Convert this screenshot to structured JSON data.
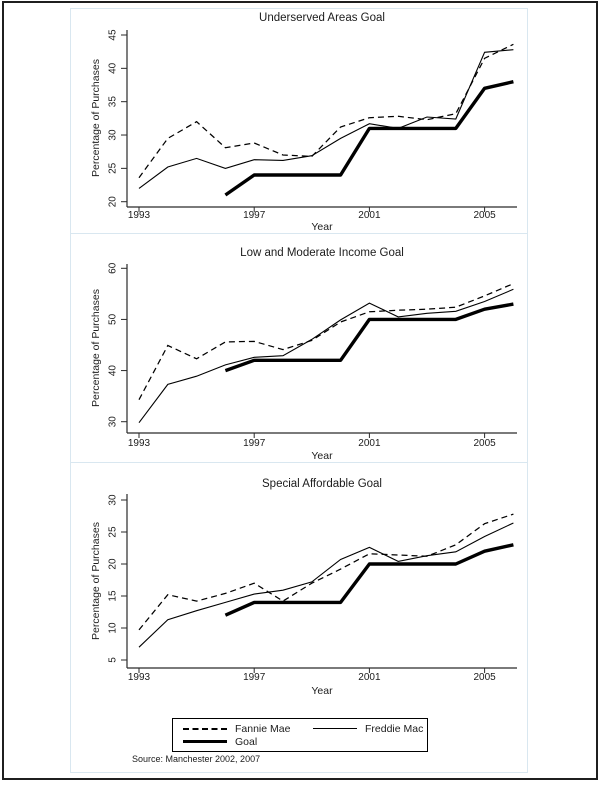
{
  "page": {
    "source_note": "Source: Manchester 2002, 2007"
  },
  "legend": {
    "position": "bottom",
    "items": [
      {
        "label": "Fannie Mae",
        "style": "dashed"
      },
      {
        "label": "Freddie Mac",
        "style": "solid"
      },
      {
        "label": "Goal",
        "style": "thick"
      }
    ]
  },
  "colors": {
    "line": "#000000",
    "axis": "#2a2a2a",
    "figure_border": "#d9e7f0",
    "page_border": "#1f1f1f",
    "background": "#ffffff"
  },
  "chart_data": [
    {
      "type": "line",
      "title": "Underserved Areas Goal",
      "xlabel": "Year",
      "ylabel": "Percentage of Purchases",
      "xlim": [
        1993,
        2006
      ],
      "ylim": [
        20,
        45
      ],
      "x_ticks": [
        1993,
        1997,
        2001,
        2005
      ],
      "y_ticks": [
        20,
        25,
        30,
        35,
        40,
        45
      ],
      "grid": false,
      "series": [
        {
          "name": "Fannie Mae",
          "style": "dashed",
          "x": [
            1993,
            1994,
            1995,
            1996,
            1997,
            1998,
            1999,
            2000,
            2001,
            2002,
            2003,
            2004,
            2005,
            2006
          ],
          "values": [
            23.6,
            29.5,
            32.0,
            28.1,
            28.8,
            27.0,
            26.8,
            31.2,
            32.6,
            32.8,
            32.3,
            33.2,
            41.5,
            43.6
          ]
        },
        {
          "name": "Freddie Mac",
          "style": "solid",
          "x": [
            1993,
            1994,
            1995,
            1996,
            1997,
            1998,
            1999,
            2000,
            2001,
            2002,
            2003,
            2004,
            2005,
            2006
          ],
          "values": [
            22.0,
            25.2,
            26.5,
            25.0,
            26.3,
            26.2,
            26.9,
            29.5,
            31.7,
            31.0,
            32.7,
            32.4,
            42.4,
            42.8
          ]
        },
        {
          "name": "Goal",
          "style": "thick",
          "x": [
            1996,
            1997,
            1998,
            1999,
            2000,
            2001,
            2002,
            2003,
            2004,
            2005,
            2006
          ],
          "values": [
            21,
            24,
            24,
            24,
            24,
            31,
            31,
            31,
            31,
            37,
            38
          ]
        }
      ]
    },
    {
      "type": "line",
      "title": "Low and Moderate Income Goal",
      "xlabel": "Year",
      "ylabel": "Percentage of Purchases",
      "xlim": [
        1993,
        2006
      ],
      "ylim": [
        30,
        60
      ],
      "x_ticks": [
        1993,
        1997,
        2001,
        2005
      ],
      "y_ticks": [
        30,
        40,
        50,
        60
      ],
      "grid": false,
      "series": [
        {
          "name": "Fannie Mae",
          "style": "dashed",
          "x": [
            1993,
            1994,
            1995,
            1996,
            1997,
            1998,
            1999,
            2000,
            2001,
            2002,
            2003,
            2004,
            2005,
            2006
          ],
          "values": [
            34.3,
            44.9,
            42.3,
            45.6,
            45.7,
            44.1,
            45.9,
            49.5,
            51.5,
            51.8,
            52.0,
            52.4,
            54.6,
            57.0
          ]
        },
        {
          "name": "Freddie Mac",
          "style": "solid",
          "x": [
            1993,
            1994,
            1995,
            1996,
            1997,
            1998,
            1999,
            2000,
            2001,
            2002,
            2003,
            2004,
            2005,
            2006
          ],
          "values": [
            29.8,
            37.3,
            38.9,
            41.1,
            42.6,
            42.9,
            46.1,
            49.9,
            53.2,
            50.5,
            51.2,
            51.6,
            53.5,
            55.9
          ]
        },
        {
          "name": "Goal",
          "style": "thick",
          "x": [
            1996,
            1997,
            1998,
            1999,
            2000,
            2001,
            2002,
            2003,
            2004,
            2005,
            2006
          ],
          "values": [
            40,
            42,
            42,
            42,
            42,
            50,
            50,
            50,
            50,
            52,
            53
          ]
        }
      ]
    },
    {
      "type": "line",
      "title": "Special Affordable Goal",
      "xlabel": "Year",
      "ylabel": "Percentage of Purchases",
      "xlim": [
        1993,
        2006
      ],
      "ylim": [
        5,
        30
      ],
      "x_ticks": [
        1993,
        1997,
        2001,
        2005
      ],
      "y_ticks": [
        5,
        10,
        15,
        20,
        25,
        30
      ],
      "grid": false,
      "series": [
        {
          "name": "Fannie Mae",
          "style": "dashed",
          "x": [
            1993,
            1994,
            1995,
            1996,
            1997,
            1998,
            1999,
            2000,
            2001,
            2002,
            2003,
            2004,
            2005,
            2006
          ],
          "values": [
            9.7,
            15.2,
            14.2,
            15.4,
            17.0,
            14.2,
            17.0,
            19.2,
            21.6,
            21.4,
            21.2,
            23.0,
            26.3,
            27.8
          ]
        },
        {
          "name": "Freddie Mac",
          "style": "solid",
          "x": [
            1993,
            1994,
            1995,
            1996,
            1997,
            1998,
            1999,
            2000,
            2001,
            2002,
            2003,
            2004,
            2005,
            2006
          ],
          "values": [
            7.0,
            11.3,
            12.7,
            14.0,
            15.3,
            15.9,
            17.2,
            20.7,
            22.6,
            20.4,
            21.3,
            21.9,
            24.3,
            26.4
          ]
        },
        {
          "name": "Goal",
          "style": "thick",
          "x": [
            1996,
            1997,
            1998,
            1999,
            2000,
            2001,
            2002,
            2003,
            2004,
            2005,
            2006
          ],
          "values": [
            12,
            14,
            14,
            14,
            14,
            20,
            20,
            20,
            20,
            22,
            23
          ]
        }
      ]
    }
  ]
}
